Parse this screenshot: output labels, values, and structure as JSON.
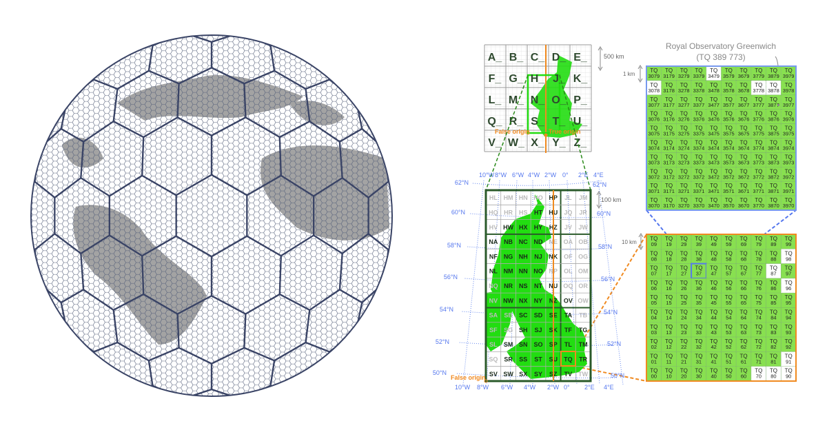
{
  "colors": {
    "land_green": "#22dd11",
    "km_green": "#88e050",
    "grid_dark": "#2a5a2a",
    "orange": "#f08a20",
    "blue": "#5577ee",
    "globe_line": "#3a4466",
    "globe_land": "#a0a0a0"
  },
  "letter_grid": {
    "rows": [
      [
        "A_",
        "B_",
        "C_",
        "D_",
        "E_"
      ],
      [
        "F_",
        "G_",
        "H_",
        "J_",
        "K_"
      ],
      [
        "L_",
        "M_",
        "N_",
        "O_",
        "P_"
      ],
      [
        "Q_",
        "R_",
        "S_",
        "T_",
        "U_"
      ],
      [
        "V_",
        "W_",
        "X_",
        "Y_",
        "Z_"
      ]
    ],
    "scale_label": "500 km",
    "false_origin": "False origin",
    "true_origin": "True origin"
  },
  "uk_grid": {
    "rows": [
      [
        "HL",
        "HM",
        "HN",
        "HO",
        "HP",
        "JL",
        "JM"
      ],
      [
        "HQ",
        "HR",
        "HS",
        "HT",
        "HU",
        "JQ",
        "JR"
      ],
      [
        "HV",
        "HW",
        "HX",
        "HY",
        "HZ",
        "JV",
        "JW"
      ],
      [
        "NA",
        "NB",
        "NC",
        "ND",
        "NE",
        "OA",
        "OB"
      ],
      [
        "NF",
        "NG",
        "NH",
        "NJ",
        "NK",
        "OF",
        "OG"
      ],
      [
        "NL",
        "NM",
        "NN",
        "NO",
        "NP",
        "OL",
        "OM"
      ],
      [
        "NQ",
        "NR",
        "NS",
        "NT",
        "NU",
        "OQ",
        "OR"
      ],
      [
        "NV",
        "NW",
        "NX",
        "NY",
        "NZ",
        "OV",
        "OW"
      ],
      [
        "SA",
        "SB",
        "SC",
        "SD",
        "SE",
        "TA",
        "TB"
      ],
      [
        "SF",
        "SG",
        "SH",
        "SJ",
        "SK",
        "TF",
        "TG"
      ],
      [
        "SL",
        "SM",
        "SN",
        "SO",
        "SP",
        "TL",
        "TM"
      ],
      [
        "SQ",
        "SR",
        "SS",
        "ST",
        "SU",
        "TQ",
        "TR"
      ],
      [
        "SV",
        "SW",
        "SX",
        "SY",
        "SZ",
        "TV",
        "TW"
      ]
    ],
    "sea_squares": [
      "HL",
      "HM",
      "HN",
      "HO",
      "JL",
      "JM",
      "HQ",
      "HR",
      "HS",
      "JQ",
      "JR",
      "HV",
      "JV",
      "JW",
      "NE",
      "OA",
      "OB",
      "OF",
      "OG",
      "NP",
      "OL",
      "OM",
      "NQ",
      "OQ",
      "OR",
      "NV",
      "OW",
      "SA",
      "SB",
      "TB",
      "SF",
      "SG",
      "SL",
      "TW",
      "SQ"
    ],
    "scale_label": "100 km",
    "false_origin": "False origin",
    "lon_top": [
      "10°W",
      "8°W",
      "6°W",
      "4°W",
      "2°W",
      "0°",
      "2°E",
      "4°E"
    ],
    "lon_bottom": [
      "10°W",
      "8°W",
      "6°W",
      "4°W",
      "2°W",
      "0°",
      "2°E",
      "4°E"
    ],
    "lat_left": [
      "62°N",
      "60°N",
      "58°N",
      "56°N",
      "54°N",
      "52°N",
      "50°N"
    ],
    "lat_right": [
      "62°N",
      "60°N",
      "58°N",
      "56°N",
      "54°N",
      "52°N",
      "50°N"
    ]
  },
  "tq_grid": {
    "prefix": "TQ",
    "scale_label": "10 km",
    "rows": [
      [
        "09",
        "19",
        "29",
        "39",
        "49",
        "59",
        "69",
        "79",
        "89",
        "99"
      ],
      [
        "08",
        "18",
        "28",
        "38",
        "48",
        "58",
        "68",
        "78",
        "88",
        "98"
      ],
      [
        "07",
        "17",
        "27",
        "37",
        "47",
        "57",
        "67",
        "77",
        "87",
        "97"
      ],
      [
        "06",
        "16",
        "26",
        "36",
        "46",
        "56",
        "66",
        "76",
        "86",
        "96"
      ],
      [
        "05",
        "15",
        "25",
        "35",
        "45",
        "55",
        "65",
        "75",
        "85",
        "95"
      ],
      [
        "04",
        "14",
        "24",
        "34",
        "44",
        "54",
        "64",
        "74",
        "84",
        "94"
      ],
      [
        "03",
        "13",
        "23",
        "33",
        "43",
        "53",
        "63",
        "73",
        "83",
        "93"
      ],
      [
        "02",
        "12",
        "22",
        "32",
        "42",
        "52",
        "62",
        "72",
        "82",
        "92"
      ],
      [
        "01",
        "11",
        "21",
        "31",
        "41",
        "51",
        "61",
        "71",
        "81",
        "91"
      ],
      [
        "00",
        "10",
        "20",
        "30",
        "40",
        "50",
        "60",
        "70",
        "80",
        "90"
      ]
    ],
    "highlight": "37"
  },
  "km_grid": {
    "prefix": "TQ",
    "scale_label": "1 km",
    "title_line1": "Royal Observatory Greenwich",
    "title_line2": "(TQ 389 773)",
    "rows": [
      [
        "3079",
        "3179",
        "3279",
        "3379",
        "3479",
        "3579",
        "3679",
        "3779",
        "3879",
        "3979"
      ],
      [
        "3078",
        "3178",
        "3278",
        "3378",
        "3478",
        "3578",
        "3678",
        "3778",
        "3878",
        "3978"
      ],
      [
        "3077",
        "3177",
        "3277",
        "3377",
        "3477",
        "3577",
        "3677",
        "3777",
        "3877",
        "3977"
      ],
      [
        "3076",
        "3176",
        "3276",
        "3376",
        "3476",
        "3576",
        "3676",
        "3776",
        "3876",
        "3976"
      ],
      [
        "3075",
        "3175",
        "3275",
        "3375",
        "3475",
        "3575",
        "3675",
        "3775",
        "3875",
        "3975"
      ],
      [
        "3074",
        "3174",
        "3274",
        "3374",
        "3474",
        "3574",
        "3674",
        "3774",
        "3874",
        "3974"
      ],
      [
        "3073",
        "3173",
        "3273",
        "3373",
        "3473",
        "3573",
        "3673",
        "3773",
        "3873",
        "3973"
      ],
      [
        "3072",
        "3172",
        "3272",
        "3372",
        "3472",
        "3572",
        "3672",
        "3772",
        "3872",
        "3972"
      ],
      [
        "3071",
        "3171",
        "3271",
        "3371",
        "3471",
        "3571",
        "3671",
        "3771",
        "3871",
        "3971"
      ],
      [
        "3070",
        "3170",
        "3270",
        "3370",
        "3470",
        "3570",
        "3670",
        "3770",
        "3870",
        "3970"
      ]
    ]
  }
}
